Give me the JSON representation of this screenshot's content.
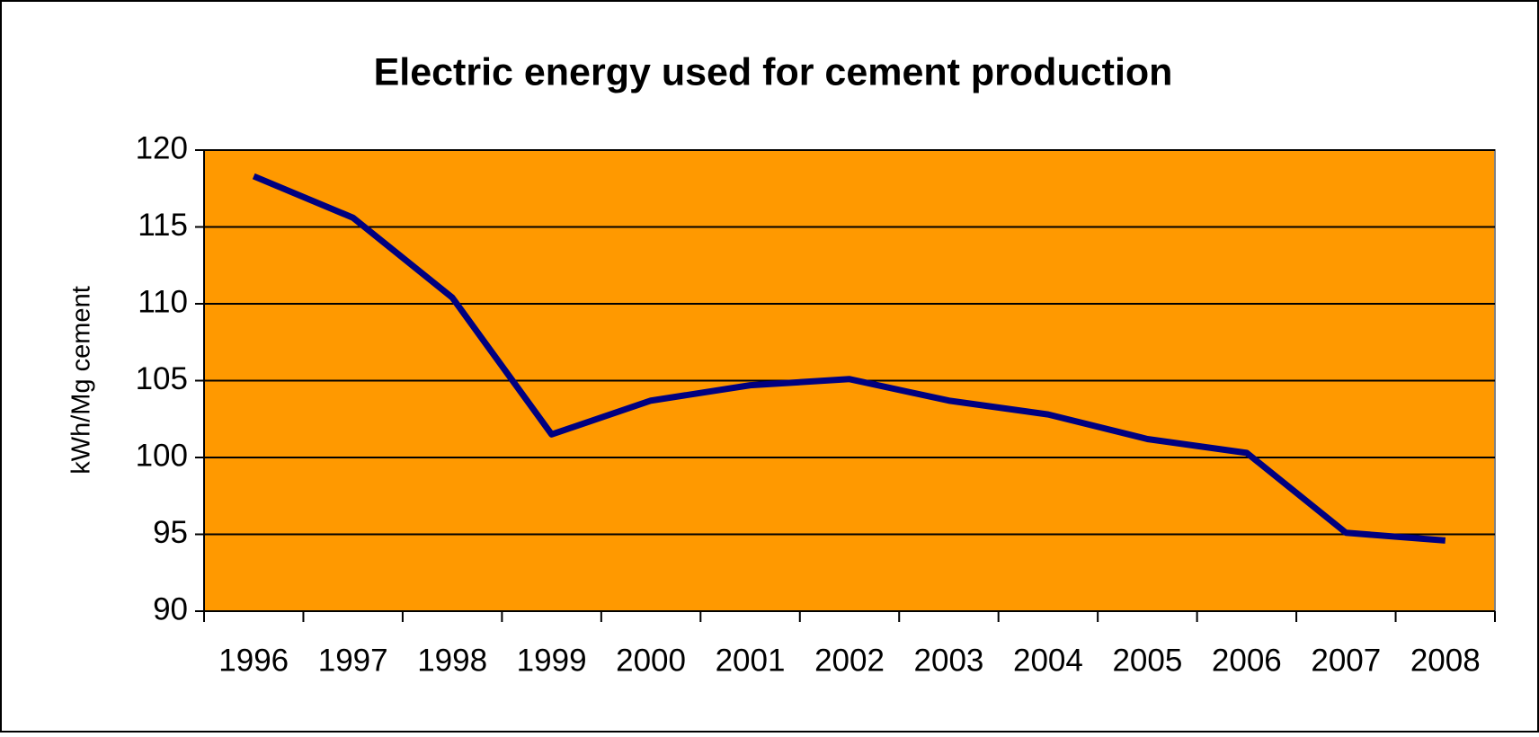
{
  "chart_data": {
    "type": "line",
    "title": "Electric energy used for cement production",
    "y_label": "kWh/Mg cement",
    "categories": [
      "1996",
      "1997",
      "1998",
      "1999",
      "2000",
      "2001",
      "2002",
      "2003",
      "2004",
      "2005",
      "2006",
      "2007",
      "2008"
    ],
    "series": [
      {
        "name": "Electric energy",
        "color": "#000080",
        "values": [
          118.3,
          115.6,
          110.4,
          101.5,
          103.7,
          104.7,
          105.1,
          103.7,
          102.8,
          101.2,
          100.3,
          95.1,
          94.6
        ]
      }
    ],
    "ylim": [
      90,
      120
    ],
    "yticks": [
      90,
      95,
      100,
      105,
      110,
      115,
      120
    ],
    "grid": true,
    "plot_background": "#ff9900"
  }
}
